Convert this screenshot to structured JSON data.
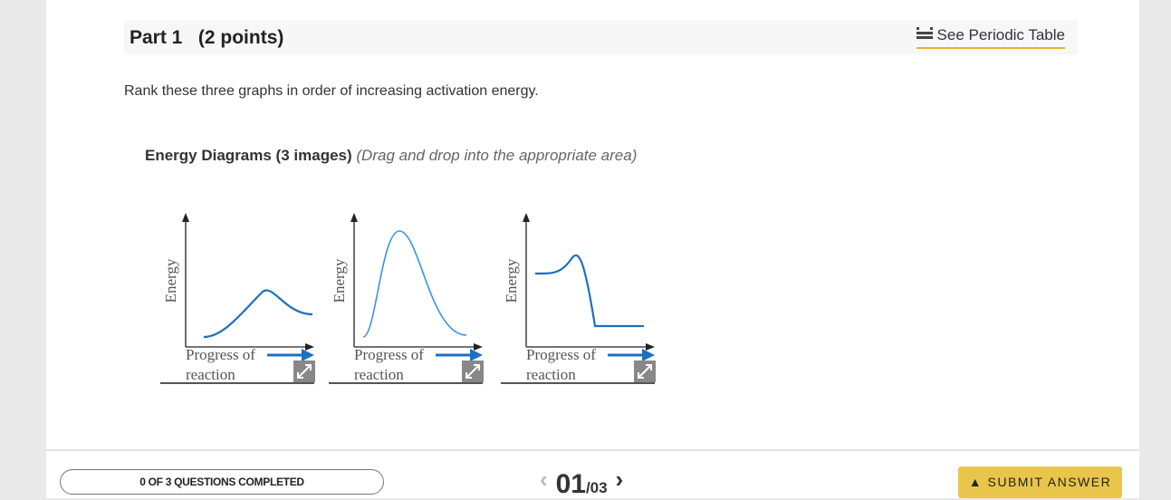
{
  "header": {
    "part": "Part 1",
    "points": "(2 points)",
    "link": "See Periodic Table"
  },
  "question": "Rank these three graphs in order of increasing activation energy.",
  "images": {
    "title": "Energy Diagrams (3 images)",
    "instruction": "(Drag and drop into the appropriate area)",
    "items": [
      {
        "y_label": "Energy",
        "x_label_line1": "Progress of",
        "x_label_line2": "reaction"
      },
      {
        "y_label": "Energy",
        "x_label_line1": "Progress of",
        "x_label_line2": "reaction"
      },
      {
        "y_label": "Energy",
        "x_label_line1": "Progress of",
        "x_label_line2": "reaction"
      }
    ]
  },
  "footer": {
    "progress": "0 OF 3 QUESTIONS COMPLETED",
    "current": "01",
    "total": "/03",
    "submit": "SUBMIT ANSWER"
  }
}
